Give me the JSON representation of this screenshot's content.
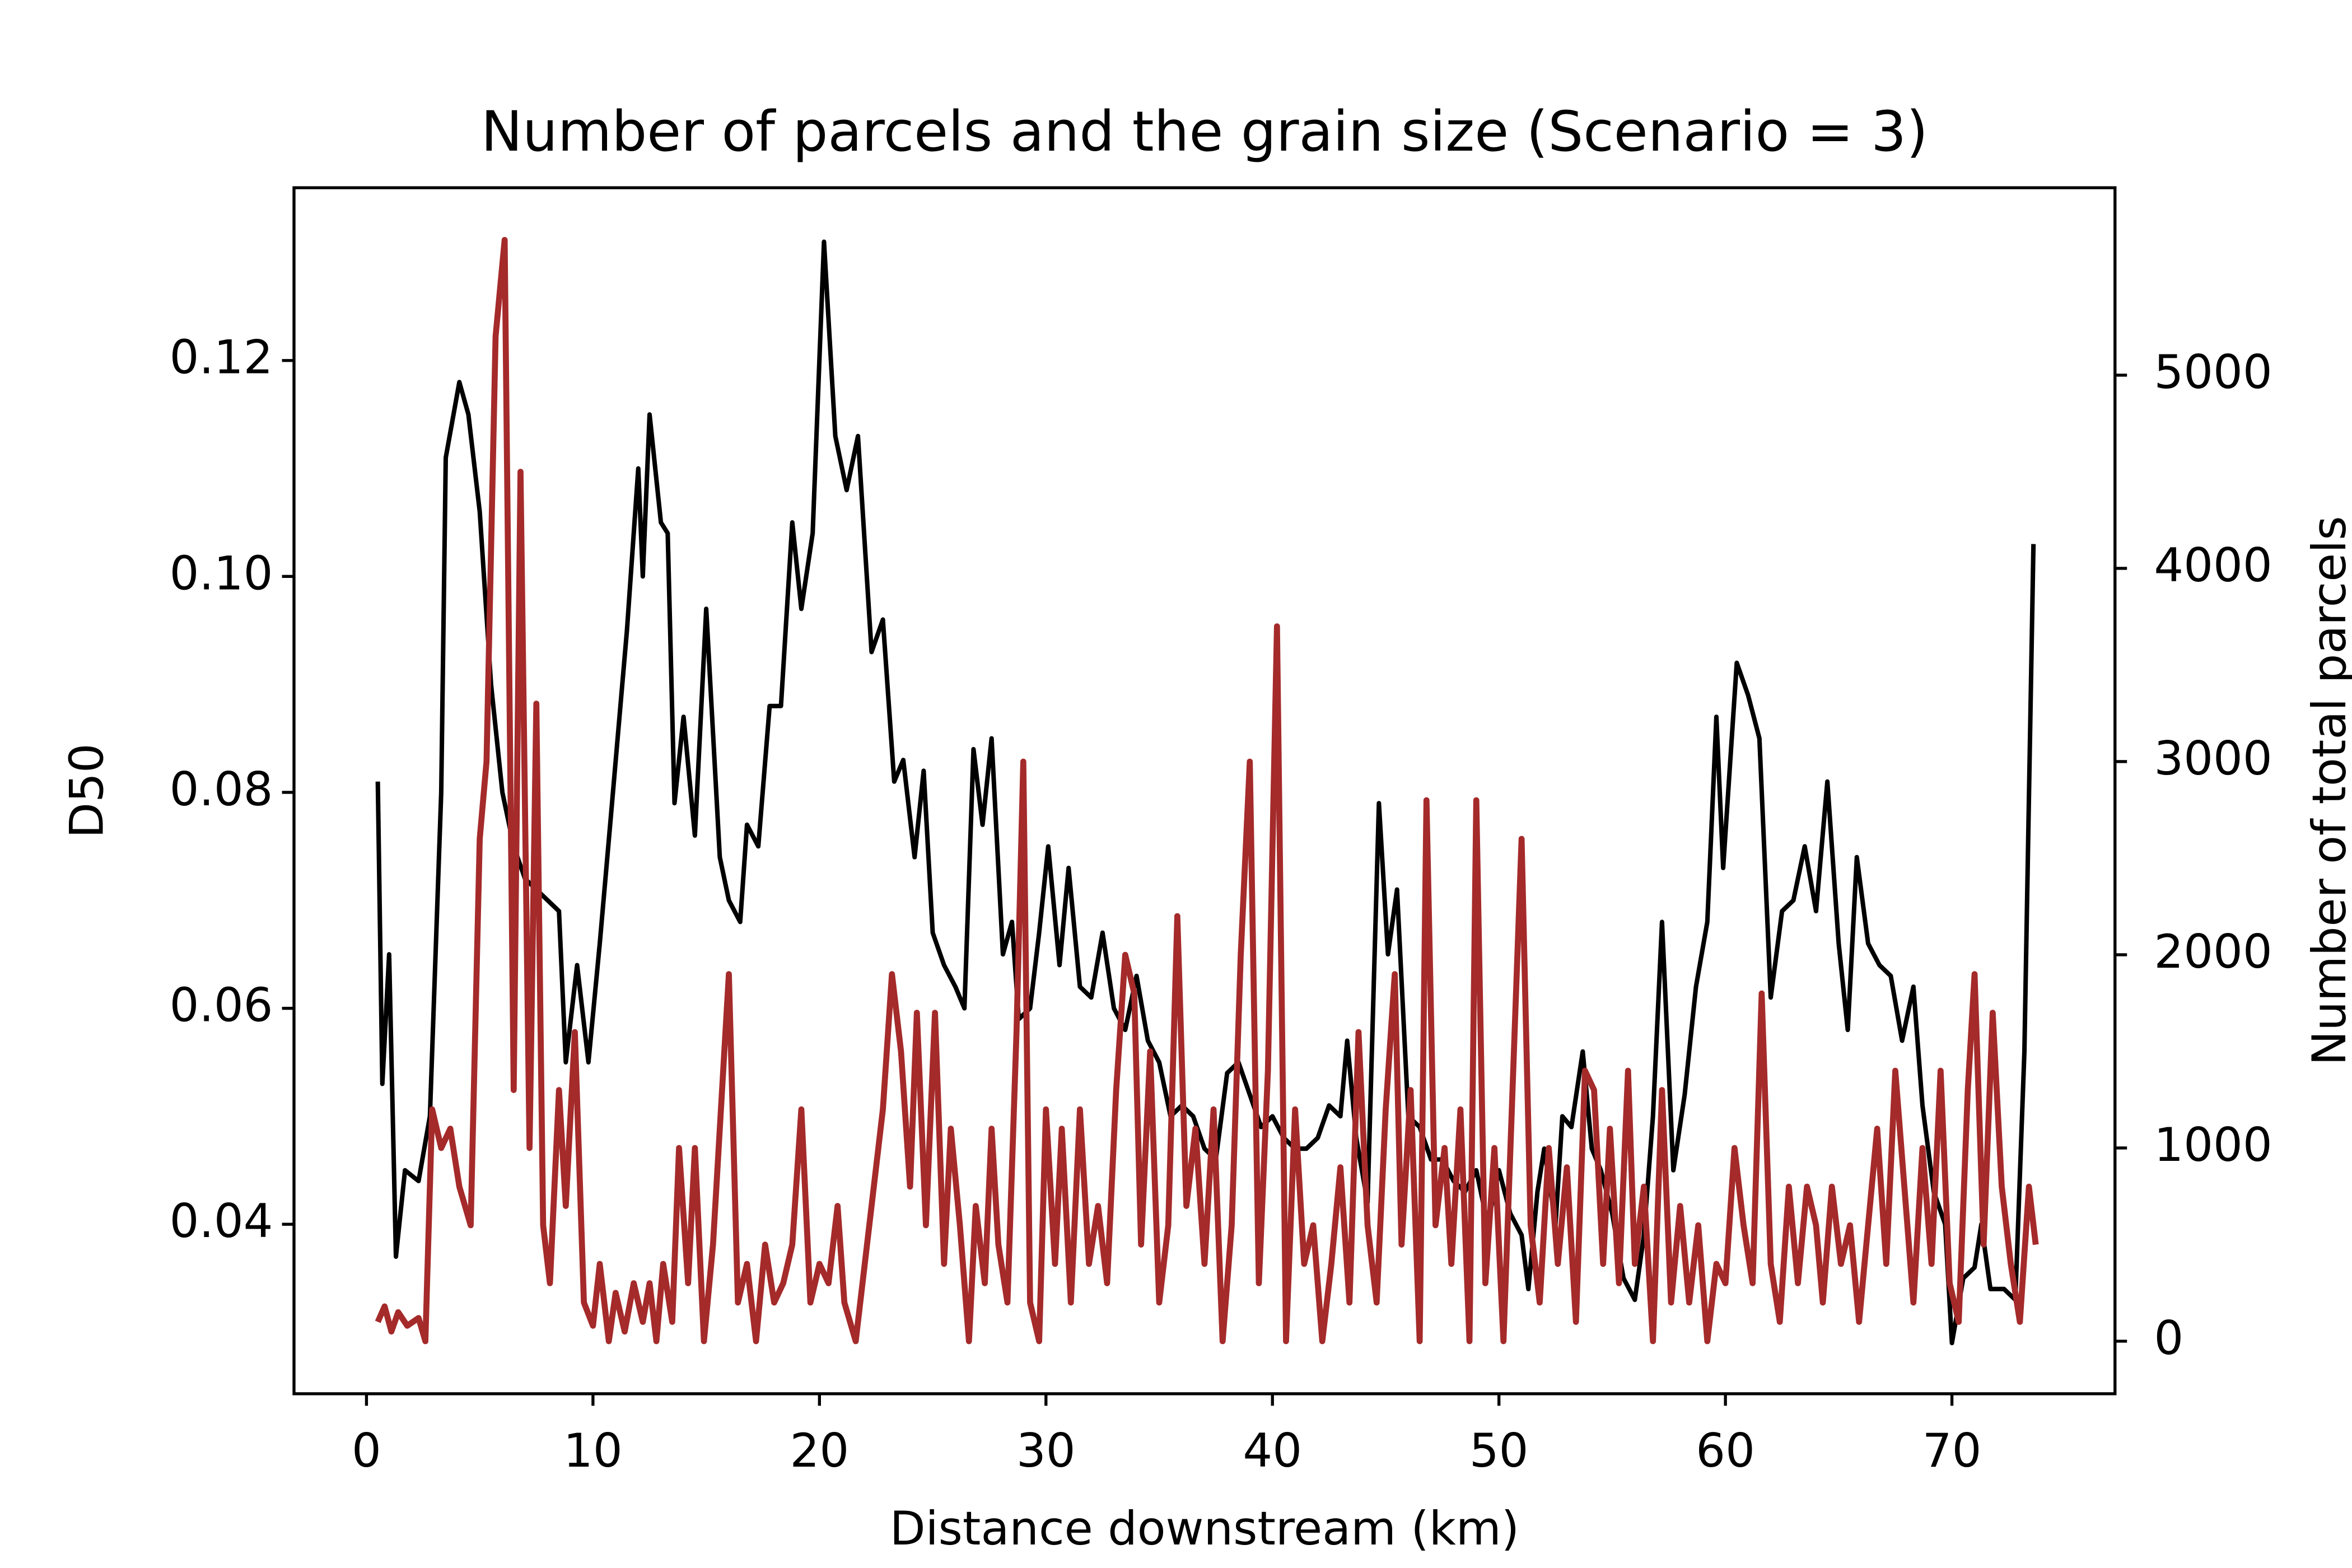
{
  "chart_data": {
    "type": "line",
    "title": "Number of parcels and the grain size (Scenario = 3)",
    "xlabel": "Distance downstream (km)",
    "ylabel": "D50",
    "y2label": "Number of total parcels",
    "xlim": [
      -3.2,
      77.2
    ],
    "xticks": [
      0,
      10,
      20,
      30,
      40,
      50,
      60,
      70
    ],
    "ylim": [
      0.0243,
      0.136
    ],
    "yticks": [
      {
        "value": 0.04,
        "label": "0.04"
      },
      {
        "value": 0.06,
        "label": "0.06"
      },
      {
        "value": 0.08,
        "label": "0.08"
      },
      {
        "value": 0.1,
        "label": "0.10"
      },
      {
        "value": 0.12,
        "label": "0.12"
      }
    ],
    "y2lim": [
      -272,
      5970
    ],
    "y2ticks": [
      0,
      1000,
      2000,
      3000,
      4000,
      5000
    ],
    "y2label_color": "#a52a2a",
    "series": [
      {
        "name": "D50",
        "color": "#000000",
        "axis": "y",
        "x": [
          0.5,
          0.7,
          1.0,
          1.3,
          1.7,
          2.3,
          2.8,
          3.3,
          3.5,
          4.1,
          4.5,
          5.0,
          5.5,
          6,
          6.5,
          7,
          7.5,
          8.5,
          8.8,
          9.3,
          9.8,
          10.3,
          10.8,
          11.5,
          12.0,
          12.2,
          12.5,
          13.0,
          13.3,
          13.6,
          14.0,
          14.5,
          15.0,
          15.6,
          16.0,
          16.5,
          16.8,
          17.3,
          17.8,
          18.3,
          18.8,
          19.2,
          19.7,
          20.2,
          20.7,
          21.2,
          21.7,
          22.3,
          22.8,
          23.3,
          23.7,
          24.2,
          24.6,
          25.0,
          25.5,
          26.0,
          26.4,
          26.8,
          27.2,
          27.6,
          28.1,
          28.5,
          28.8,
          29.3,
          29.7,
          30.1,
          30.6,
          31.0,
          31.5,
          32.0,
          32.5,
          33.0,
          33.5,
          34.0,
          34.5,
          35.0,
          35.5,
          36.0,
          36.5,
          37.0,
          37.5,
          38.0,
          38.5,
          39.0,
          39.5,
          40.0,
          40.5,
          41.0,
          41.5,
          42.0,
          42.5,
          43.0,
          43.3,
          43.7,
          44.2,
          44.7,
          45.1,
          45.5,
          46.0,
          46.5,
          47.0,
          47.5,
          48.0,
          48.5,
          49.0,
          49.5,
          50.0,
          50.5,
          51.0,
          51.3,
          51.7,
          52.0,
          52.5,
          52.8,
          53.2,
          53.7,
          54.1,
          54.5,
          55.0,
          55.5,
          56.0,
          56.4,
          56.8,
          57.2,
          57.7,
          58.2,
          58.7,
          59.2,
          59.6,
          59.9,
          60.5,
          61.0,
          61.5,
          62.0,
          62.5,
          63.0,
          63.5,
          64.0,
          64.5,
          65.0,
          65.4,
          65.8,
          66.3,
          66.8,
          67.3,
          67.8,
          68.3,
          68.7,
          69.2,
          69.7,
          70.0,
          70.5,
          71.0,
          71.3,
          71.7,
          72.3,
          72.8,
          73.2,
          73.6
        ],
        "values": [
          0.081,
          0.053,
          0.065,
          0.037,
          0.045,
          0.044,
          0.05,
          0.08,
          0.111,
          0.118,
          0.115,
          0.106,
          0.09,
          0.08,
          0.075,
          0.072,
          0.071,
          0.069,
          0.055,
          0.064,
          0.055,
          0.066,
          0.078,
          0.095,
          0.11,
          0.1,
          0.115,
          0.105,
          0.104,
          0.079,
          0.087,
          0.076,
          0.097,
          0.074,
          0.07,
          0.068,
          0.077,
          0.075,
          0.088,
          0.088,
          0.105,
          0.097,
          0.104,
          0.131,
          0.113,
          0.108,
          0.113,
          0.093,
          0.096,
          0.081,
          0.083,
          0.074,
          0.082,
          0.067,
          0.064,
          0.062,
          0.06,
          0.084,
          0.077,
          0.085,
          0.065,
          0.068,
          0.059,
          0.06,
          0.067,
          0.075,
          0.064,
          0.073,
          0.062,
          0.061,
          0.067,
          0.06,
          0.058,
          0.063,
          0.057,
          0.055,
          0.05,
          0.051,
          0.05,
          0.047,
          0.046,
          0.054,
          0.055,
          0.052,
          0.049,
          0.05,
          0.048,
          0.047,
          0.047,
          0.048,
          0.051,
          0.05,
          0.057,
          0.048,
          0.042,
          0.079,
          0.065,
          0.071,
          0.05,
          0.049,
          0.046,
          0.046,
          0.044,
          0.043,
          0.045,
          0.04,
          0.045,
          0.041,
          0.039,
          0.034,
          0.043,
          0.047,
          0.04,
          0.05,
          0.049,
          0.056,
          0.047,
          0.045,
          0.041,
          0.035,
          0.033,
          0.039,
          0.05,
          0.068,
          0.045,
          0.052,
          0.062,
          0.068,
          0.087,
          0.073,
          0.092,
          0.089,
          0.085,
          0.061,
          0.069,
          0.07,
          0.075,
          0.069,
          0.081,
          0.066,
          0.058,
          0.074,
          0.066,
          0.064,
          0.063,
          0.057,
          0.062,
          0.051,
          0.043,
          0.04,
          0.029,
          0.035,
          0.036,
          0.04,
          0.034,
          0.034,
          0.033,
          0.056,
          0.103
        ]
      },
      {
        "name": "Number of total parcels",
        "color": "#a52a2a",
        "axis": "y2",
        "x": [
          0.5,
          0.8,
          1.1,
          1.4,
          1.8,
          2.3,
          2.6,
          2.9,
          3.3,
          3.7,
          4.1,
          4.6,
          5.0,
          5.3,
          5.7,
          6.1,
          6.5,
          6.8,
          7.2,
          7.5,
          7.8,
          8.1,
          8.5,
          8.8,
          9.2,
          9.6,
          10.0,
          10.3,
          10.7,
          11.0,
          11.4,
          11.8,
          12.2,
          12.5,
          12.8,
          13.1,
          13.5,
          13.8,
          14.2,
          14.5,
          14.9,
          15.3,
          15.6,
          16.0,
          16.4,
          16.8,
          17.2,
          17.6,
          18.0,
          18.4,
          18.8,
          19.2,
          19.6,
          20.0,
          20.4,
          20.8,
          21.1,
          21.6,
          22.0,
          22.4,
          22.8,
          23.2,
          23.6,
          24.0,
          24.3,
          24.7,
          25.1,
          25.5,
          25.8,
          26.2,
          26.6,
          26.9,
          27.3,
          27.6,
          27.9,
          28.3,
          28.7,
          29.0,
          29.3,
          29.7,
          30.0,
          30.4,
          30.7,
          31.1,
          31.5,
          31.9,
          32.3,
          32.7,
          33.1,
          33.5,
          33.9,
          34.2,
          34.6,
          35.0,
          35.4,
          35.8,
          36.2,
          36.6,
          37.0,
          37.4,
          37.8,
          38.2,
          38.6,
          39.0,
          39.4,
          39.8,
          40.2,
          40.6,
          41.0,
          41.4,
          41.8,
          42.2,
          42.6,
          43.0,
          43.4,
          43.8,
          44.2,
          44.6,
          45.0,
          45.4,
          45.7,
          46.1,
          46.5,
          46.8,
          47.2,
          47.6,
          47.9,
          48.3,
          48.7,
          49.0,
          49.4,
          49.8,
          50.2,
          50.6,
          51.0,
          51.4,
          51.8,
          52.2,
          52.6,
          53.0,
          53.4,
          53.8,
          54.2,
          54.6,
          54.9,
          55.3,
          55.7,
          56.0,
          56.4,
          56.8,
          57.2,
          57.6,
          58.0,
          58.4,
          58.8,
          59.2,
          59.6,
          60.0,
          60.4,
          60.8,
          61.2,
          61.6,
          62.0,
          62.4,
          62.8,
          63.2,
          63.6,
          64.0,
          64.3,
          64.7,
          65.1,
          65.5,
          65.9,
          66.3,
          66.7,
          67.1,
          67.5,
          67.9,
          68.3,
          68.7,
          69.1,
          69.5,
          69.9,
          70.3,
          70.7,
          71.0,
          71.4,
          71.8,
          72.2,
          72.6,
          73.0,
          73.4,
          73.7
        ],
        "values": [
          100,
          180,
          50,
          150,
          80,
          120,
          0,
          1200,
          1000,
          1100,
          800,
          600,
          2600,
          3000,
          5200,
          5700,
          1300,
          4500,
          1000,
          3300,
          600,
          300,
          1300,
          700,
          1600,
          200,
          80,
          400,
          0,
          250,
          50,
          300,
          100,
          300,
          0,
          400,
          100,
          1000,
          300,
          1000,
          0,
          500,
          1100,
          1900,
          200,
          400,
          0,
          500,
          200,
          300,
          500,
          1200,
          200,
          400,
          300,
          700,
          200,
          0,
          400,
          800,
          1200,
          1900,
          1500,
          800,
          1700,
          600,
          1700,
          400,
          1100,
          600,
          0,
          700,
          300,
          1100,
          500,
          200,
          1600,
          3000,
          200,
          0,
          1200,
          400,
          1100,
          200,
          1200,
          400,
          700,
          300,
          1300,
          2000,
          1800,
          500,
          1500,
          200,
          600,
          2200,
          700,
          1100,
          400,
          1200,
          0,
          600,
          2000,
          3000,
          300,
          1400,
          3700,
          0,
          1200,
          400,
          600,
          0,
          400,
          900,
          200,
          1600,
          600,
          200,
          1200,
          1900,
          500,
          1300,
          0,
          2800,
          600,
          1000,
          400,
          1200,
          0,
          2800,
          300,
          1000,
          0,
          1300,
          2600,
          600,
          200,
          1000,
          400,
          900,
          100,
          1400,
          1300,
          400,
          1100,
          300,
          1400,
          400,
          800,
          0,
          1300,
          200,
          700,
          200,
          600,
          0,
          400,
          300,
          1000,
          600,
          300,
          1800,
          400,
          100,
          800,
          300,
          800,
          600,
          200,
          800,
          400,
          600,
          100,
          600,
          1100,
          400,
          1400,
          800,
          200,
          1000,
          400,
          1400,
          300,
          100,
          1300,
          1900,
          500,
          1700,
          800,
          400,
          100,
          800,
          500
        ]
      }
    ]
  }
}
